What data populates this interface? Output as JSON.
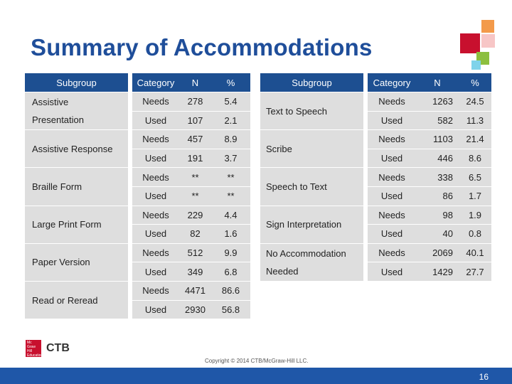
{
  "slide": {
    "title": "Summary of Accommodations",
    "copyright": "Copyright © 2014 CTB/McGraw-Hill LLC.",
    "page_number": "16"
  },
  "logo": {
    "mark_text": "Mc Graw Hill Education",
    "name": "CTB"
  },
  "colors": {
    "title": "#1f4e9a",
    "header": "#1d4f91",
    "cell": "#dedede",
    "footer": "#1f57a8"
  },
  "columns": {
    "subgroup": "Subgroup",
    "category": "Category",
    "n": "N",
    "pct": "%"
  },
  "left_groups": [
    {
      "name_line1": "Assistive",
      "name_line2": "Presentation",
      "rows": [
        {
          "category": "Needs",
          "n": "278",
          "pct": "5.4"
        },
        {
          "category": "Used",
          "n": "107",
          "pct": "2.1"
        }
      ]
    },
    {
      "name_line1": "Assistive Response",
      "name_line2": "",
      "rows": [
        {
          "category": "Needs",
          "n": "457",
          "pct": "8.9"
        },
        {
          "category": "Used",
          "n": "191",
          "pct": "3.7"
        }
      ]
    },
    {
      "name_line1": "Braille Form",
      "name_line2": "",
      "rows": [
        {
          "category": "Needs",
          "n": "**",
          "pct": "**"
        },
        {
          "category": "Used",
          "n": "**",
          "pct": "**"
        }
      ]
    },
    {
      "name_line1": "Large Print Form",
      "name_line2": "",
      "rows": [
        {
          "category": "Needs",
          "n": "229",
          "pct": "4.4"
        },
        {
          "category": "Used",
          "n": "82",
          "pct": "1.6"
        }
      ]
    },
    {
      "name_line1": "Paper Version",
      "name_line2": "",
      "rows": [
        {
          "category": "Needs",
          "n": "512",
          "pct": "9.9"
        },
        {
          "category": "Used",
          "n": "349",
          "pct": "6.8"
        }
      ]
    },
    {
      "name_line1": "Read or Reread",
      "name_line2": "",
      "rows": [
        {
          "category": "Needs",
          "n": "4471",
          "pct": "86.6"
        },
        {
          "category": "Used",
          "n": "2930",
          "pct": "56.8"
        }
      ]
    }
  ],
  "right_groups": [
    {
      "name_line1": "Text to Speech",
      "name_line2": "",
      "rows": [
        {
          "category": "Needs",
          "n": "1263",
          "pct": "24.5"
        },
        {
          "category": "Used",
          "n": "582",
          "pct": "11.3"
        }
      ]
    },
    {
      "name_line1": "Scribe",
      "name_line2": "",
      "rows": [
        {
          "category": "Needs",
          "n": "1103",
          "pct": "21.4"
        },
        {
          "category": "Used",
          "n": "446",
          "pct": "8.6"
        }
      ]
    },
    {
      "name_line1": "Speech to Text",
      "name_line2": "",
      "rows": [
        {
          "category": "Needs",
          "n": "338",
          "pct": "6.5"
        },
        {
          "category": "Used",
          "n": "86",
          "pct": "1.7"
        }
      ]
    },
    {
      "name_line1": "Sign Interpretation",
      "name_line2": "",
      "rows": [
        {
          "category": "Needs",
          "n": "98",
          "pct": "1.9"
        },
        {
          "category": "Used",
          "n": "40",
          "pct": "0.8"
        }
      ]
    },
    {
      "name_line1": "No Accommodation",
      "name_line2": "Needed",
      "rows": [
        {
          "category": "Needs",
          "n": "2069",
          "pct": "40.1"
        },
        {
          "category": "Used",
          "n": "1429",
          "pct": "27.7"
        }
      ]
    }
  ]
}
